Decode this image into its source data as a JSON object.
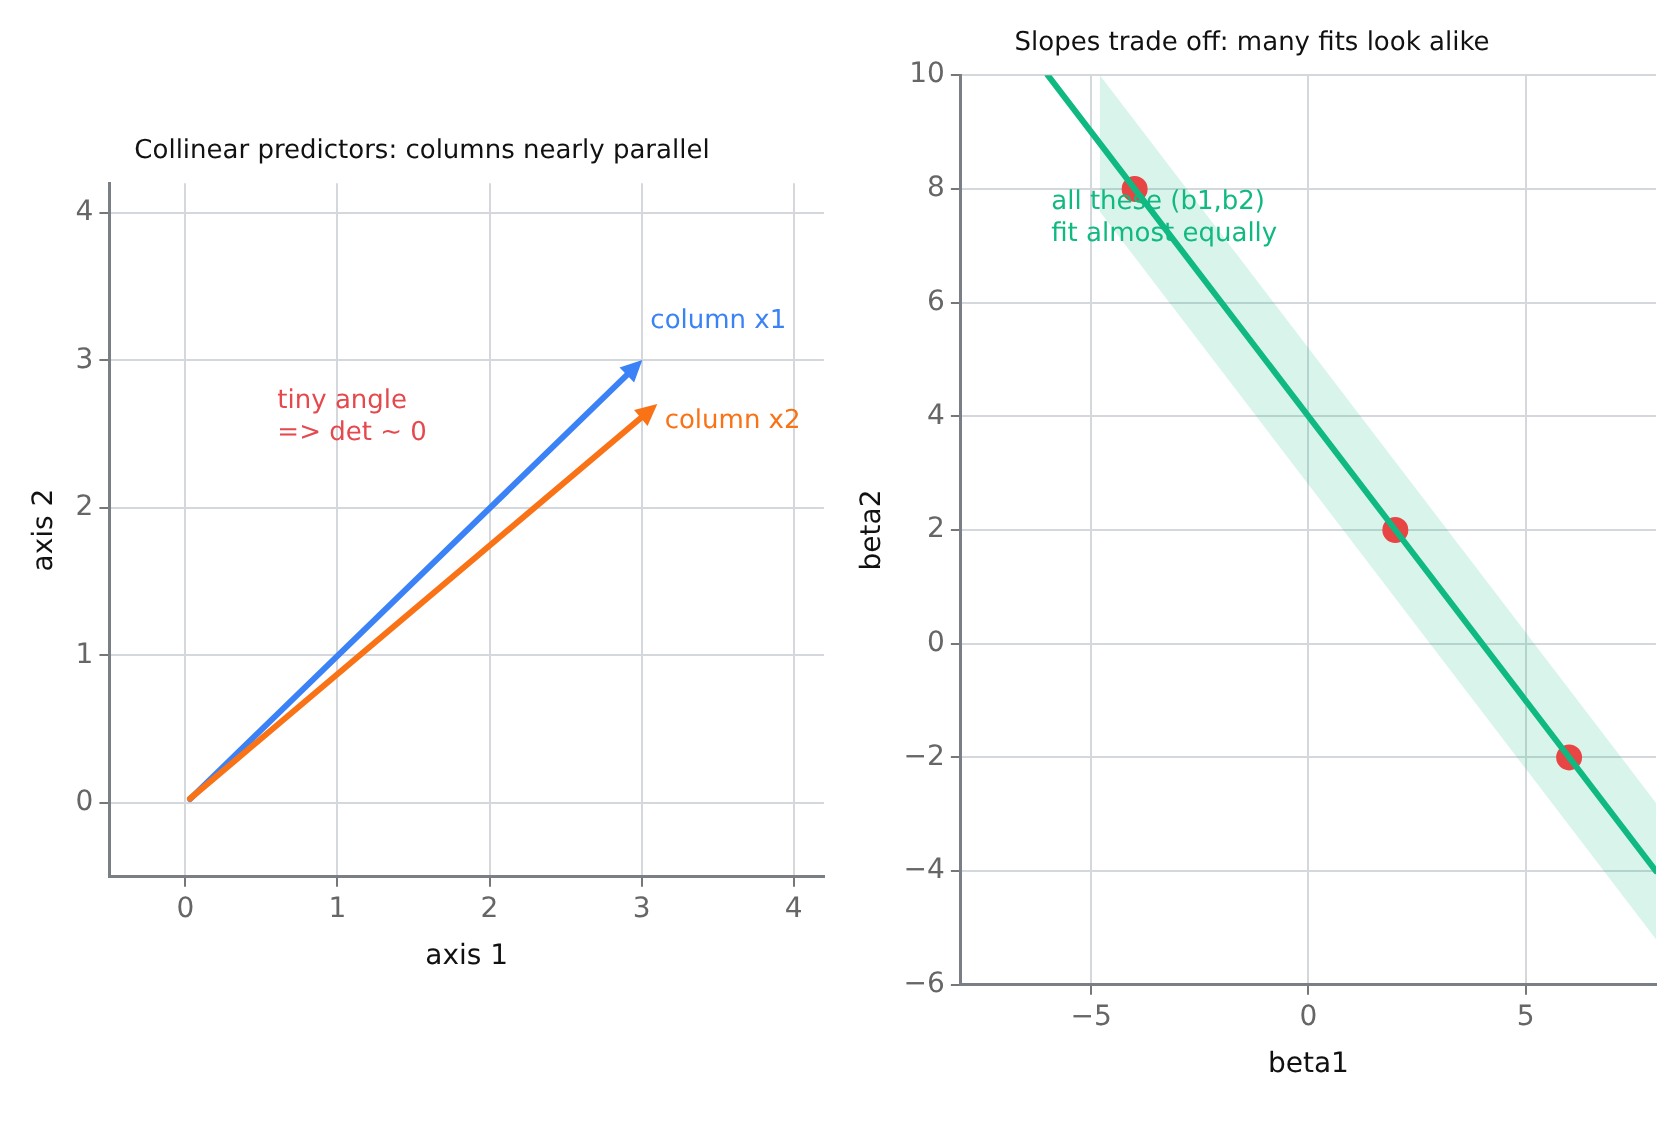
{
  "chart_data": [
    {
      "type": "line",
      "title": "Collinear predictors: columns nearly parallel",
      "xlabel": "axis 1",
      "ylabel": "axis 2",
      "xlim": [
        -0.5,
        4.2
      ],
      "xticks": [
        0,
        1,
        2,
        3,
        4
      ],
      "ylim": [
        -0.5,
        4.2
      ],
      "yticks": [
        0,
        1,
        2,
        3,
        4
      ],
      "grid": true,
      "annotations": [
        "column x1",
        "tiny angle\n=> det ~ 0",
        "column x2"
      ]
    },
    {
      "type": "line",
      "title": "Slopes trade off: many fits look alike",
      "xlabel": "beta1",
      "ylabel": "beta2",
      "xlim": [
        -8,
        8
      ],
      "xticks": [
        {
          "value": -5,
          "label": "−5"
        },
        0,
        5
      ],
      "ylim": [
        -6,
        10
      ],
      "yticks": [
        {
          "value": -6,
          "label": "−6"
        },
        {
          "value": -4,
          "label": "−4"
        },
        {
          "value": -2,
          "label": "−2"
        },
        0,
        2,
        4,
        6,
        8,
        10
      ],
      "grid": true,
      "series": [
        {
          "color": "#10b981",
          "x": [
            -6,
            -4.8,
            2,
            8
          ],
          "values": [
            10,
            8.8,
            2,
            -4
          ],
          "lower": [
            null,
            7.6,
            0.8,
            -5.2
          ],
          "upper": [
            null,
            10,
            3.2,
            -2.8
          ]
        },
        {
          "type": "scatter",
          "color": "#e84545",
          "x": [
            -4,
            2,
            6
          ],
          "values": [
            8,
            2,
            -2
          ],
          "marker": "circle"
        }
      ],
      "annotations": [
        "all these (b1,b2)\nfit almost equally"
      ]
    }
  ]
}
